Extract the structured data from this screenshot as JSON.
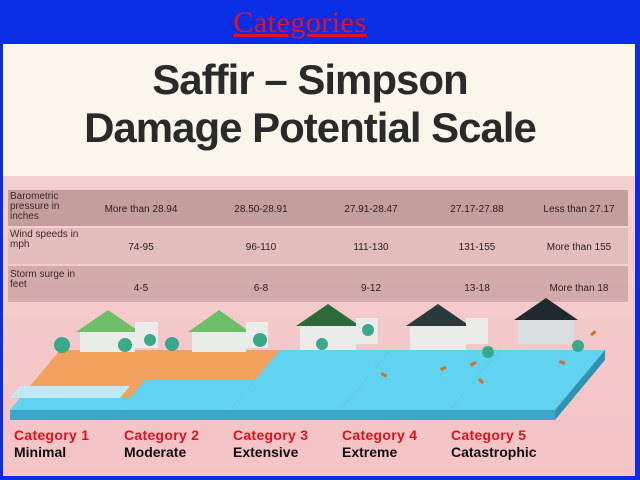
{
  "slide_title": "Categories",
  "heading": {
    "line1": "Saffir – Simpson",
    "line2": "Damage Potential Scale"
  },
  "table": {
    "rows": [
      {
        "label": "Barometric pressure in inches",
        "values": [
          "More than 28.94",
          "28.50-28.91",
          "27.91-28.47",
          "27.17-27.88",
          "Less than 27.17"
        ]
      },
      {
        "label": "Wind speeds in mph",
        "values": [
          "74-95",
          "96-110",
          "111-130",
          "131-155",
          "More than 155"
        ]
      },
      {
        "label": "Storm surge in feet",
        "values": [
          "4-5",
          "6-8",
          "9-12",
          "13-18",
          "More than 18"
        ]
      }
    ]
  },
  "categories": [
    {
      "name": "Category 1",
      "damage": "Minimal"
    },
    {
      "name": "Category 2",
      "damage": "Moderate"
    },
    {
      "name": "Category 3",
      "damage": "Extensive"
    },
    {
      "name": "Category 4",
      "damage": "Extreme"
    },
    {
      "name": "Category 5",
      "damage": "Catastrophic"
    }
  ],
  "colors": {
    "title_red": "#e8101e",
    "category_red": "#e50e1b",
    "background_blue": "#0a2ee6",
    "water": "#5fd3f0",
    "sand": "#f2a25c"
  }
}
